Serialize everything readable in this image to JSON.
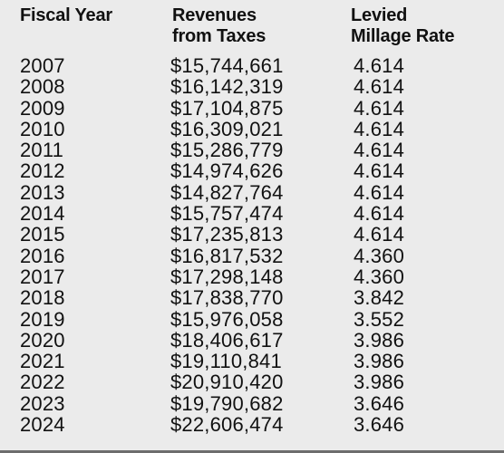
{
  "table": {
    "headers": {
      "fiscal_year": "Fiscal Year",
      "revenues": "Revenues\nfrom Taxes",
      "millage": "Levied\nMillage Rate"
    },
    "rows": [
      {
        "year": "2007",
        "revenue": "$15,744,661",
        "rate": "4.614"
      },
      {
        "year": "2008",
        "revenue": "$16,142,319",
        "rate": "4.614"
      },
      {
        "year": "2009",
        "revenue": "$17,104,875",
        "rate": "4.614"
      },
      {
        "year": "2010",
        "revenue": "$16,309,021",
        "rate": "4.614"
      },
      {
        "year": "2011",
        "revenue": "$15,286,779",
        "rate": "4.614"
      },
      {
        "year": "2012",
        "revenue": "$14,974,626",
        "rate": "4.614"
      },
      {
        "year": "2013",
        "revenue": "$14,827,764",
        "rate": "4.614"
      },
      {
        "year": "2014",
        "revenue": "$15,757,474",
        "rate": "4.614"
      },
      {
        "year": "2015",
        "revenue": "$17,235,813",
        "rate": "4.614"
      },
      {
        "year": "2016",
        "revenue": "$16,817,532",
        "rate": "4.360"
      },
      {
        "year": "2017",
        "revenue": "$17,298,148",
        "rate": "4.360"
      },
      {
        "year": "2018",
        "revenue": "$17,838,770",
        "rate": "3.842"
      },
      {
        "year": "2019",
        "revenue": "$15,976,058",
        "rate": "3.552"
      },
      {
        "year": "2020",
        "revenue": "$18,406,617",
        "rate": "3.986"
      },
      {
        "year": "2021",
        "revenue": "$19,110,841",
        "rate": "3.986"
      },
      {
        "year": "2022",
        "revenue": "$20,910,420",
        "rate": "3.986"
      },
      {
        "year": "2023",
        "revenue": "$19,790,682",
        "rate": "3.646"
      },
      {
        "year": "2024",
        "revenue": "$22,606,474",
        "rate": "3.646"
      }
    ]
  },
  "colors": {
    "background": "#ebebeb",
    "text": "#111111",
    "rule": "#6d6d6d"
  }
}
